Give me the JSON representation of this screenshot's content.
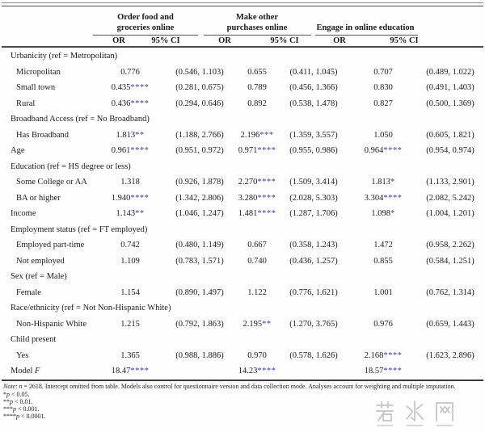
{
  "colors": {
    "star_blue": "#3a3ab8",
    "rule_dark": "#3a3a3a",
    "watermark_gray": "#c4c4c4"
  },
  "table": {
    "groups": [
      {
        "lines": [
          "Order food and",
          "groceries online"
        ]
      },
      {
        "lines": [
          "Make other",
          "purchases online"
        ]
      },
      {
        "lines": [
          "Engage in online education"
        ]
      }
    ],
    "subheaders": {
      "or": "OR",
      "ci": "95% CI"
    },
    "rows": [
      {
        "type": "section",
        "label": "Urbanicity (ref = Metropolitan)"
      },
      {
        "type": "data",
        "indent": true,
        "label": "Micropolitan",
        "cells": [
          "0.776",
          "(0.546, 1.103)",
          "0.655",
          "(0.411, 1.045)",
          "0.707",
          "(0.489, 1.022)"
        ]
      },
      {
        "type": "data",
        "indent": true,
        "label": "Small town",
        "cells": [
          "0.435****",
          "(0.281, 0.675)",
          "0.789",
          "(0.456, 1.366)",
          "0.830",
          "(0.491, 1.403)"
        ]
      },
      {
        "type": "data",
        "indent": true,
        "label": "Rural",
        "cells": [
          "0.436****",
          "(0.294, 0.646)",
          "0.892",
          "(0.538, 1.478)",
          "0.827",
          "(0.500, 1.369)"
        ]
      },
      {
        "type": "section",
        "label": "Broadband Access (ref = No Broadband)"
      },
      {
        "type": "data",
        "indent": true,
        "label": "Has Broadband",
        "cells": [
          "1.813**",
          "(1.188, 2.766)",
          "2.196***",
          "(1.359, 3.557)",
          "1.050",
          "(0.605, 1.821)"
        ]
      },
      {
        "type": "data",
        "indent": false,
        "label": "Age",
        "cells": [
          "0.961****",
          "(0.951, 0.972)",
          "0.971****",
          "(0.955, 0.986)",
          "0.964****",
          "(0.954, 0.974)"
        ]
      },
      {
        "type": "section",
        "label": "Education (ref = HS degree or less)"
      },
      {
        "type": "data",
        "indent": true,
        "label": "Some College or AA",
        "cells": [
          "1.318",
          "(0.926, 1.878)",
          "2.270****",
          "(1.509, 3.414)",
          "1.813*",
          "(1.133, 2.901)"
        ]
      },
      {
        "type": "data",
        "indent": true,
        "label": "BA or higher",
        "cells": [
          "1.940****",
          "(1.342, 2.806)",
          "3.280****",
          "(2.028, 5.303)",
          "3.304****",
          "(2.082, 5.242)"
        ]
      },
      {
        "type": "data",
        "indent": false,
        "label": "Income",
        "cells": [
          "1.143**",
          "(1.046, 1.247)",
          "1.481****",
          "(1.287, 1.706)",
          "1.098*",
          "(1.004, 1.201)"
        ]
      },
      {
        "type": "section",
        "label": "Employment status (ref = FT employed)"
      },
      {
        "type": "data",
        "indent": true,
        "label": "Employed part-time",
        "cells": [
          "0.742",
          "(0.480, 1.149)",
          "0.667",
          "(0.358, 1.243)",
          "1.472",
          "(0.958, 2.262)"
        ]
      },
      {
        "type": "data",
        "indent": true,
        "label": "Not employed",
        "cells": [
          "1.109",
          "(0.783, 1.571)",
          "0.740",
          "(0.436, 1.257)",
          "0.855",
          "(0.584, 1.251)"
        ]
      },
      {
        "type": "section",
        "label": "Sex (ref = Male)"
      },
      {
        "type": "data",
        "indent": true,
        "label": "Female",
        "cells": [
          "1.154",
          "(0.890, 1.497)",
          "1.122",
          "(0.776, 1.621)",
          "1.001",
          "(0.762, 1.314)"
        ]
      },
      {
        "type": "section",
        "label": "Race/ethnicity (ref = Not Non-Hispanic White)"
      },
      {
        "type": "data",
        "indent": true,
        "label": "Non-Hispanic White",
        "cells": [
          "1.215",
          "(0.792, 1.863)",
          "2.195**",
          "(1.270, 3.765)",
          "0.976",
          "(0.659, 1.443)"
        ]
      },
      {
        "type": "section",
        "label": "Child present"
      },
      {
        "type": "data",
        "indent": true,
        "label": "Yes",
        "cells": [
          "1.365",
          "(0.988, 1.886)",
          "0.970",
          "(0.578, 1.626)",
          "2.168****",
          "(1.623, 2.896)"
        ]
      },
      {
        "type": "data",
        "indent": false,
        "label": "Model",
        "label_italic": "F",
        "cells": [
          "18.47****",
          "",
          "14.23****",
          "",
          "18.57****",
          ""
        ]
      }
    ]
  },
  "notes": {
    "main": [
      {
        "text": "Note",
        "italic": true
      },
      {
        "text": ": "
      },
      {
        "text": "n",
        "italic": true
      },
      {
        "text": " = 2618. Intercept omitted from table. Models also control for questionnaire version and data collection mode. Analyses account for weighting and multiple imputation."
      }
    ],
    "sig_lines": [
      [
        {
          "text": "*"
        },
        {
          "text": "p",
          "italic": true
        },
        {
          "text": " < 0.05."
        }
      ],
      [
        {
          "text": "**"
        },
        {
          "text": "p",
          "italic": true
        },
        {
          "text": " < 0.01."
        }
      ],
      [
        {
          "text": "***"
        },
        {
          "text": "p",
          "italic": true
        },
        {
          "text": " < 0.001."
        }
      ],
      [
        {
          "text": "****"
        },
        {
          "text": "p",
          "italic": true
        },
        {
          "text": " < 0.0001."
        }
      ]
    ]
  },
  "watermark": {
    "text": "若水网"
  }
}
